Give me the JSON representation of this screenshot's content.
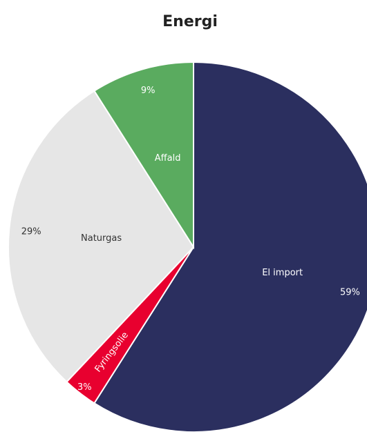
{
  "chart_data": {
    "type": "pie",
    "title": "Energi",
    "categories": [
      "El import",
      "Fyringsolie",
      "Naturgas",
      "Affald"
    ],
    "values": [
      59,
      3,
      29,
      9
    ],
    "value_labels": [
      "59%",
      "3%",
      "29%",
      "9%"
    ],
    "colors": [
      "#2b2f5f",
      "#e8002f",
      "#e6e6e6",
      "#5aab5f"
    ]
  }
}
